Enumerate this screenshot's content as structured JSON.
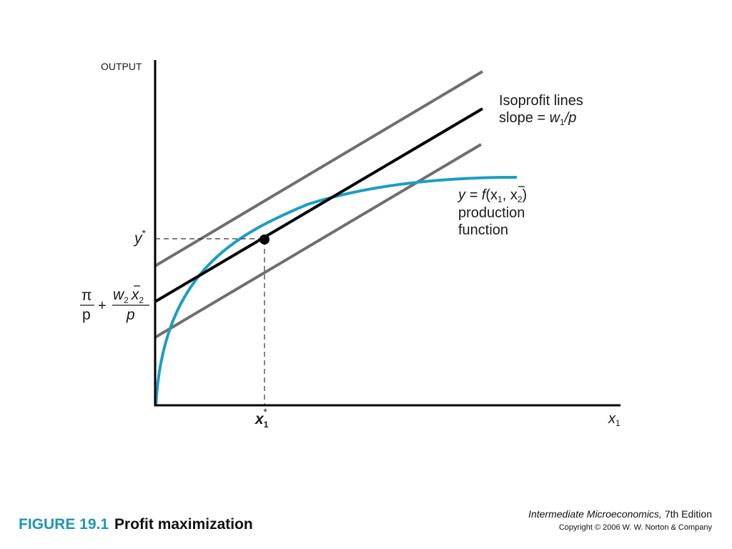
{
  "figure": {
    "number": "FIGURE 19.1",
    "title": "Profit maximization"
  },
  "footer": {
    "book_title": "Intermediate Microeconomics,",
    "edition": "7th Edition",
    "copyright": "Copyright © 2006 W. W. Norton & Company"
  },
  "axes": {
    "y_label": "OUTPUT",
    "x_label_main": "x",
    "x_label_sub": "1"
  },
  "markers": {
    "y_star": "y",
    "y_star_sup": "*",
    "x_star": "x",
    "x_star_sub": "1",
    "x_star_sup": "*"
  },
  "intercept": {
    "pi": "π",
    "p_lower": "p",
    "plus": "+",
    "w": "w",
    "w_sub": "2",
    "x": "x",
    "x_sub": "2",
    "p_den": "p"
  },
  "isoprofit": {
    "title": "Isoprofit lines",
    "slope_prefix": "slope = ",
    "w": "w",
    "w_sub": "1",
    "slash_p": "/p"
  },
  "production": {
    "y_eq": "y = ",
    "f": "f",
    "open": "(x",
    "sub1": "1",
    "comma": ", ",
    "xbar": "x",
    "sub2": "2",
    "close": ")",
    "line2": "production",
    "line3": "function"
  },
  "colors": {
    "curve": "#1d9dc4",
    "optimal_line": "#000000",
    "other_lines": "#6e6e6e",
    "caption_accent": "#1f95b6"
  }
}
